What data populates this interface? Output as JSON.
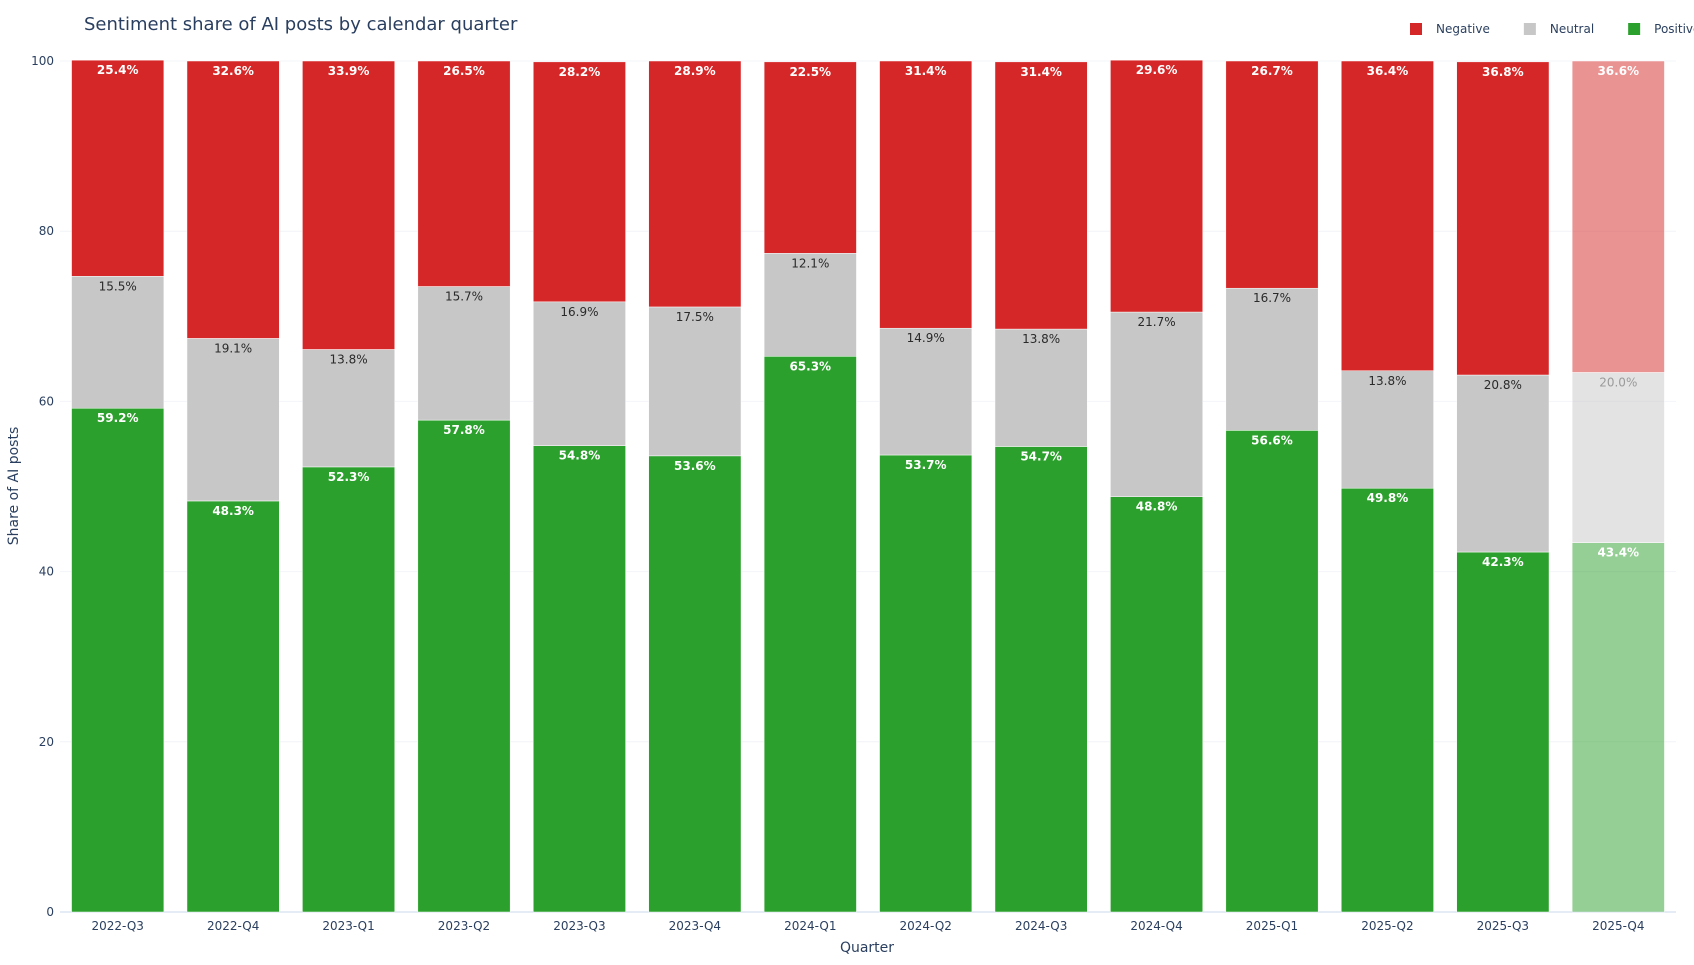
{
  "chart_data": {
    "type": "bar",
    "stacked": true,
    "title": "Sentiment share of AI posts by calendar quarter",
    "xlabel": "Quarter",
    "ylabel": "Share of AI posts",
    "ylim": [
      0,
      100
    ],
    "yticks": [
      0,
      20,
      40,
      60,
      80,
      100
    ],
    "grid": true,
    "legend_position": "top-right",
    "categories": [
      "2022-Q3",
      "2022-Q4",
      "2023-Q1",
      "2023-Q2",
      "2023-Q3",
      "2023-Q4",
      "2024-Q1",
      "2024-Q2",
      "2024-Q3",
      "2024-Q4",
      "2025-Q1",
      "2025-Q2",
      "2025-Q3",
      "2025-Q4"
    ],
    "faded_categories": [
      "2025-Q4"
    ],
    "series": [
      {
        "name": "Positive",
        "color": "#2ca02c",
        "label_color": "#ffffff",
        "values": [
          59.2,
          48.3,
          52.3,
          57.8,
          54.8,
          53.6,
          65.3,
          53.7,
          54.7,
          48.8,
          56.6,
          49.8,
          42.3,
          43.4
        ]
      },
      {
        "name": "Neutral",
        "color": "#c7c7c7",
        "label_color": "#2a2a2a",
        "values": [
          15.5,
          19.1,
          13.8,
          15.7,
          16.9,
          17.5,
          12.1,
          14.9,
          13.8,
          21.7,
          16.7,
          13.8,
          20.8,
          20.0
        ]
      },
      {
        "name": "Negative",
        "color": "#d62728",
        "label_color": "#ffffff",
        "values": [
          25.4,
          32.6,
          33.9,
          26.5,
          28.2,
          28.9,
          22.5,
          31.4,
          31.4,
          29.6,
          26.7,
          36.4,
          36.8,
          36.6
        ]
      }
    ],
    "legend_order": [
      "Negative",
      "Neutral",
      "Positive"
    ]
  }
}
